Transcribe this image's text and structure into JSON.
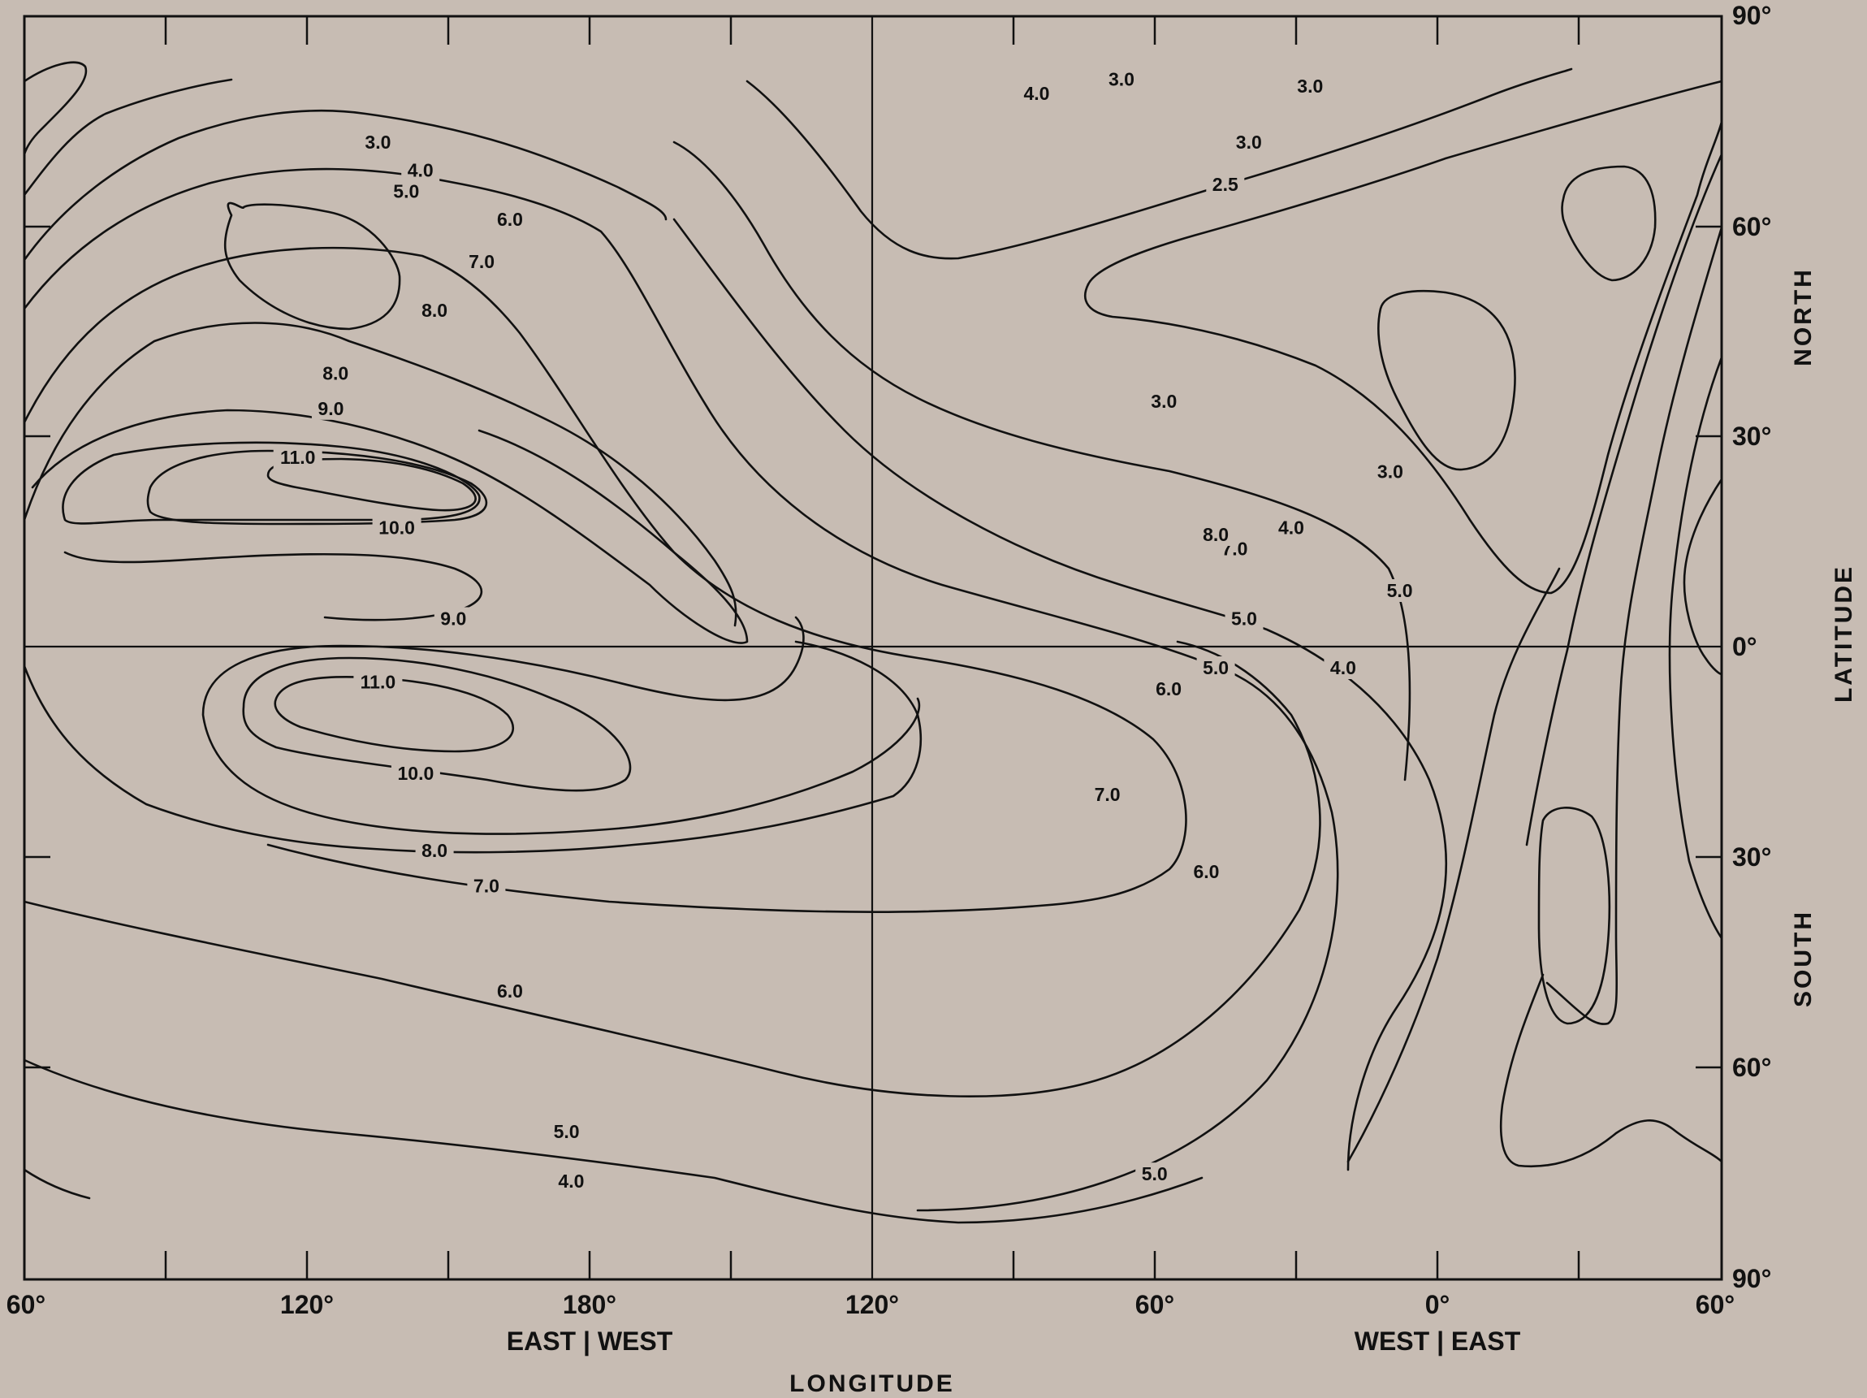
{
  "chart_data": {
    "type": "contour",
    "title": "",
    "xlabel": "LONGITUDE",
    "ylabel": "LATITUDE",
    "x_tick_labels": [
      "60°",
      "120°",
      "180°",
      "120°",
      "60°",
      "0°",
      "60°"
    ],
    "x_side_labels": {
      "left": "EAST | WEST",
      "right": "WEST | EAST"
    },
    "y_tick_labels": [
      "90°",
      "60°",
      "30°",
      "0°",
      "30°",
      "60°",
      "90°"
    ],
    "y_side_labels": {
      "north": "NORTH",
      "south": "SOUTH"
    },
    "contour_levels": [
      2.5,
      3.0,
      4.0,
      5.0,
      6.0,
      7.0,
      8.0,
      9.0,
      10.0,
      11.0
    ],
    "contour_labels": [
      {
        "text": "3.0",
        "lon": 67,
        "lat": 81
      },
      {
        "text": "4.0",
        "lon": 85,
        "lat": 79
      },
      {
        "text": "4.0",
        "lon": 144,
        "lat": 68
      },
      {
        "text": "5.0",
        "lon": 141,
        "lat": 65
      },
      {
        "text": "6.0",
        "lon": 163,
        "lat": 61
      },
      {
        "text": "7.0",
        "lon": 157,
        "lat": 55
      },
      {
        "text": "8.0",
        "lon": 147,
        "lat": 48
      },
      {
        "text": "3.0",
        "lon": 135,
        "lat": 72
      },
      {
        "text": "8.0",
        "lon": 126,
        "lat": 39
      },
      {
        "text": "9.0",
        "lon": 125,
        "lat": 34
      },
      {
        "text": "11.0",
        "lon": 118,
        "lat": 27
      },
      {
        "text": "10.0",
        "lon": 139,
        "lat": 17
      },
      {
        "text": "9.0",
        "lon": 151,
        "lat": 4
      },
      {
        "text": "11.0",
        "lon": 135,
        "lat": -5
      },
      {
        "text": "10.0",
        "lon": 143,
        "lat": -18
      },
      {
        "text": "8.0",
        "lon": 147,
        "lat": -29
      },
      {
        "text": "7.0",
        "lon": 158,
        "lat": -34
      },
      {
        "text": "6.0",
        "lon": 163,
        "lat": -49
      },
      {
        "text": "5.0",
        "lon": 175,
        "lat": -69
      },
      {
        "text": "4.0",
        "lon": 176,
        "lat": -76
      },
      {
        "text": "3.0",
        "lon": 27,
        "lat": 80
      },
      {
        "text": "3.0",
        "lon": 40,
        "lat": 72
      },
      {
        "text": "2.5",
        "lon": 45,
        "lat": 66
      },
      {
        "text": "3.0",
        "lon": 58,
        "lat": 35
      },
      {
        "text": "3.0",
        "lon": 10,
        "lat": 25
      },
      {
        "text": "4.0",
        "lon": 31,
        "lat": 17
      },
      {
        "text": "5.0",
        "lon": 41,
        "lat": 4
      },
      {
        "text": "6.0",
        "lon": 57,
        "lat": -6
      },
      {
        "text": "7.0",
        "lon": 70,
        "lat": -21
      },
      {
        "text": "5.0",
        "lon": 60,
        "lat": -75
      },
      {
        "text": "4.0",
        "lon": 20,
        "lat": -3
      },
      {
        "text": "5.0",
        "lon": 47,
        "lat": -3
      },
      {
        "text": "5.0",
        "lon": 8,
        "lat": 8
      },
      {
        "text": "7.0",
        "lon": 43,
        "lat": 14
      },
      {
        "text": "8.0",
        "lon": 47,
        "lat": 16
      },
      {
        "text": "6.0",
        "lon": 49,
        "lat": -32
      }
    ]
  }
}
